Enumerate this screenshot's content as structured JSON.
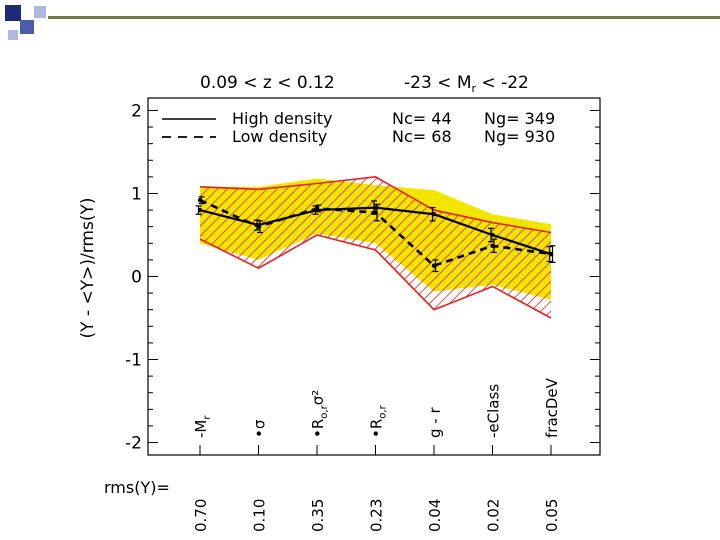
{
  "chart_data": {
    "type": "line",
    "title_left": "0.09 < z < 0.12",
    "title_right": "-23 < M",
    "title_right_sub": "r",
    "title_right_tail": " < -22",
    "ylabel": "(Y - <Y>)/rms(Y)",
    "ylim": [
      -2.15,
      2.15
    ],
    "yticks": [
      -2,
      -1,
      0,
      1,
      2
    ],
    "yticklabels": [
      "-2",
      "-1",
      "0",
      "1",
      "2"
    ],
    "variables": [
      {
        "label": "-M",
        "sub": "r",
        "tail": ""
      },
      {
        "label": "•σ",
        "sub": "",
        "tail": ""
      },
      {
        "label": "•R",
        "sub": "o,r",
        "tail": "σ²"
      },
      {
        "label": "•R",
        "sub": "o,r",
        "tail": ""
      },
      {
        "label": "g - r",
        "sub": "",
        "tail": ""
      },
      {
        "label": "-eClass",
        "sub": "",
        "tail": ""
      },
      {
        "label": "fracDeV",
        "sub": "",
        "tail": ""
      }
    ],
    "rms_label": "rms(Y)=",
    "rms_values": [
      "0.70",
      "0.10",
      "0.35",
      "0.23",
      "0.04",
      "0.02",
      "0.05"
    ],
    "legend": [
      {
        "name": "High density",
        "style": "solid",
        "nc": "Nc= 44",
        "ng": "Ng= 349"
      },
      {
        "name": "Low density",
        "style": "dashed",
        "nc": "Nc= 68",
        "ng": "Ng= 930"
      }
    ],
    "series": [
      {
        "name": "High density",
        "style": "solid",
        "values": [
          0.8,
          0.62,
          0.8,
          0.83,
          0.75,
          0.5,
          0.27
        ],
        "errors": [
          0.05,
          0.06,
          0.05,
          0.08,
          0.08,
          0.08,
          0.09
        ]
      },
      {
        "name": "Low density",
        "style": "dashed",
        "values": [
          0.92,
          0.6,
          0.82,
          0.77,
          0.13,
          0.37,
          0.27
        ],
        "errors": [
          0.04,
          0.07,
          0.04,
          0.1,
          0.07,
          0.08,
          0.1
        ]
      }
    ],
    "bands": [
      {
        "name": "High density spread",
        "color": "#f2e600",
        "upper": [
          1.08,
          1.08,
          1.18,
          1.1,
          1.04,
          0.75,
          0.63
        ],
        "lower": [
          0.4,
          0.2,
          0.52,
          0.4,
          -0.18,
          -0.1,
          -0.28
        ]
      },
      {
        "name": "Low density spread",
        "color": "#e62020",
        "upper": [
          1.08,
          1.05,
          1.12,
          1.2,
          0.8,
          0.65,
          0.53
        ],
        "lower": [
          0.45,
          0.1,
          0.5,
          0.32,
          -0.4,
          -0.12,
          -0.5
        ]
      }
    ]
  },
  "decor": {
    "square_colors": [
      "#1e2a78",
      "#4a5ba8",
      "#aeb9e0"
    ],
    "rule_color": "#6e7e44"
  }
}
